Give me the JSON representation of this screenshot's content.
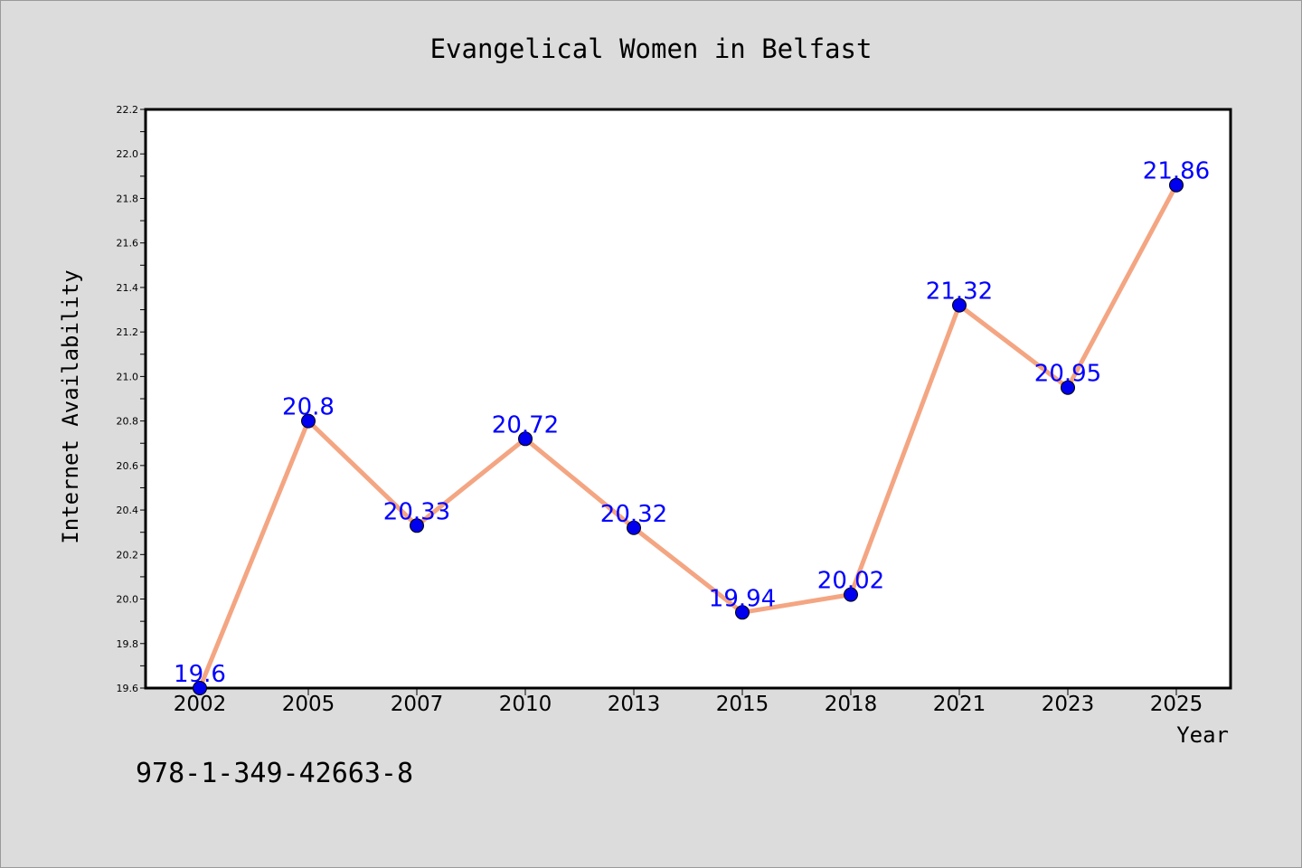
{
  "chart_data": {
    "type": "line",
    "title": "Evangelical Women in Belfast",
    "xlabel": "Year",
    "ylabel": "Internet Availability",
    "categories": [
      "2002",
      "2005",
      "2007",
      "2010",
      "2013",
      "2015",
      "2018",
      "2021",
      "2023",
      "2025"
    ],
    "series": [
      {
        "values": [
          19.6,
          20.8,
          20.33,
          20.72,
          20.32,
          19.94,
          20.02,
          21.32,
          20.95,
          21.86
        ],
        "data_labels": [
          "19.6",
          "20.8",
          "20.33",
          "20.72",
          "20.32",
          "19.94",
          "20.02",
          "21.32",
          "20.95",
          "21.86"
        ],
        "line_color": "#f4a582",
        "marker_color": "#0000ee",
        "label_color": "#0000ff"
      }
    ],
    "ylim": [
      19.6,
      22.2
    ],
    "yticks": [
      19.6,
      19.8,
      20.0,
      20.2,
      20.4,
      20.6,
      20.8,
      21.0,
      21.2,
      21.4,
      21.6,
      21.8,
      22.0,
      22.2
    ],
    "ytick_labels": [
      "19.6",
      "19.8",
      "20.0",
      "20.2",
      "20.4",
      "20.6",
      "20.8",
      "21.0",
      "21.2",
      "21.4",
      "21.6",
      "21.8",
      "22.0",
      "22.2"
    ],
    "grid": false,
    "legend": "none"
  },
  "footer": {
    "isbn": "978-1-349-42663-8"
  },
  "colors": {
    "background": "#dcdcdc",
    "plot_background": "#ffffff",
    "axis": "#000000"
  }
}
